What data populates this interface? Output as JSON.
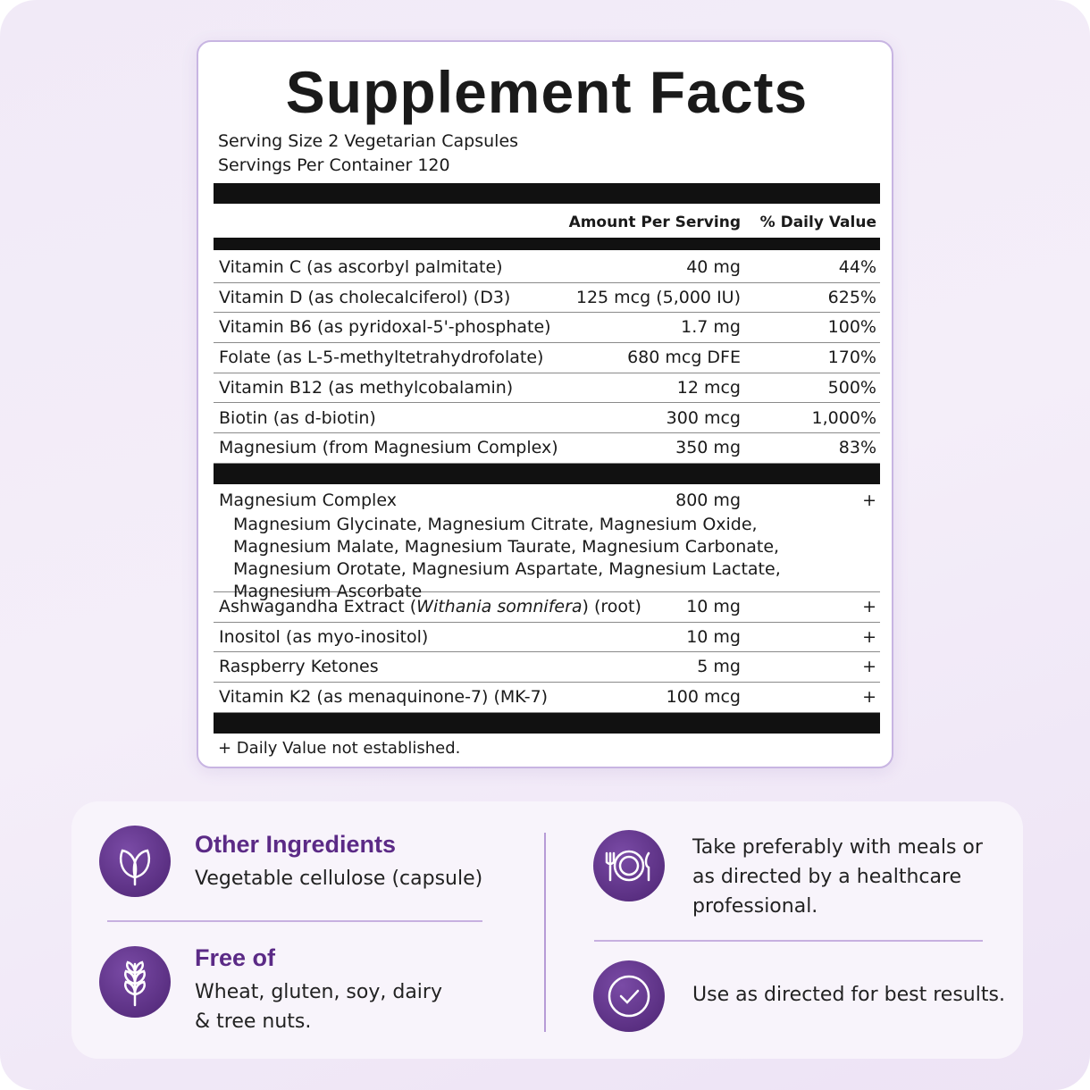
{
  "label": {
    "title": "Supplement Facts",
    "serving_size": "Serving Size 2 Vegetarian Capsules",
    "servings_per_container": "Servings Per Container 120",
    "columns": {
      "amount": "Amount Per Serving",
      "daily_value": "% Daily Value"
    },
    "nutrients": [
      {
        "name": "Vitamin C (as ascorbyl palmitate)",
        "amount": "40 mg",
        "daily_value": "44%"
      },
      {
        "name": "Vitamin D (as cholecalciferol) (D3)",
        "amount": "125 mcg (5,000 IU)",
        "daily_value": "625%"
      },
      {
        "name": "Vitamin B6 (as pyridoxal-5'-phosphate)",
        "amount": "1.7 mg",
        "daily_value": "100%"
      },
      {
        "name": "Folate (as L-5-methyltetrahydrofolate)",
        "amount": "680 mcg DFE",
        "daily_value": "170%"
      },
      {
        "name": "Vitamin B12 (as methylcobalamin)",
        "amount": "12 mcg",
        "daily_value": "500%"
      },
      {
        "name": "Biotin (as d-biotin)",
        "amount": "300 mcg",
        "daily_value": "1,000%"
      },
      {
        "name": "Magnesium (from Magnesium Complex)",
        "amount": "350 mg",
        "daily_value": "83%"
      }
    ],
    "blend": {
      "name": "Magnesium Complex",
      "amount": "800 mg",
      "daily_value": "+",
      "components": "Magnesium Glycinate, Magnesium Citrate, Magnesium Oxide, Magnesium Malate, Magnesium Taurate, Magnesium Carbonate, Magnesium Orotate, Magnesium Aspartate, Magnesium Lactate, Magnesium Ascorbate"
    },
    "others": [
      {
        "name_start": "Ashwagandha Extract (",
        "name_italic": "Withania somnifera",
        "name_end": ") (root)",
        "amount": "10 mg",
        "daily_value": "+"
      },
      {
        "name": "Inositol (as myo-inositol)",
        "amount": "10 mg",
        "daily_value": "+"
      },
      {
        "name": "Raspberry Ketones",
        "amount": "5 mg",
        "daily_value": "+"
      },
      {
        "name": "Vitamin K2 (as menaquinone-7) (MK-7)",
        "amount": "100 mcg",
        "daily_value": "+"
      }
    ],
    "footnote": "+ Daily Value not established."
  },
  "info": {
    "other_ingredients": {
      "heading": "Other Ingredients",
      "text": "Vegetable cellulose (capsule)"
    },
    "free_of": {
      "heading": "Free of",
      "text": "Wheat, gluten, soy, dairy & tree nuts."
    },
    "with_meals": "Take preferably with meals or as directed by a healthcare professional.",
    "use_directed": "Use as directed for best results."
  }
}
